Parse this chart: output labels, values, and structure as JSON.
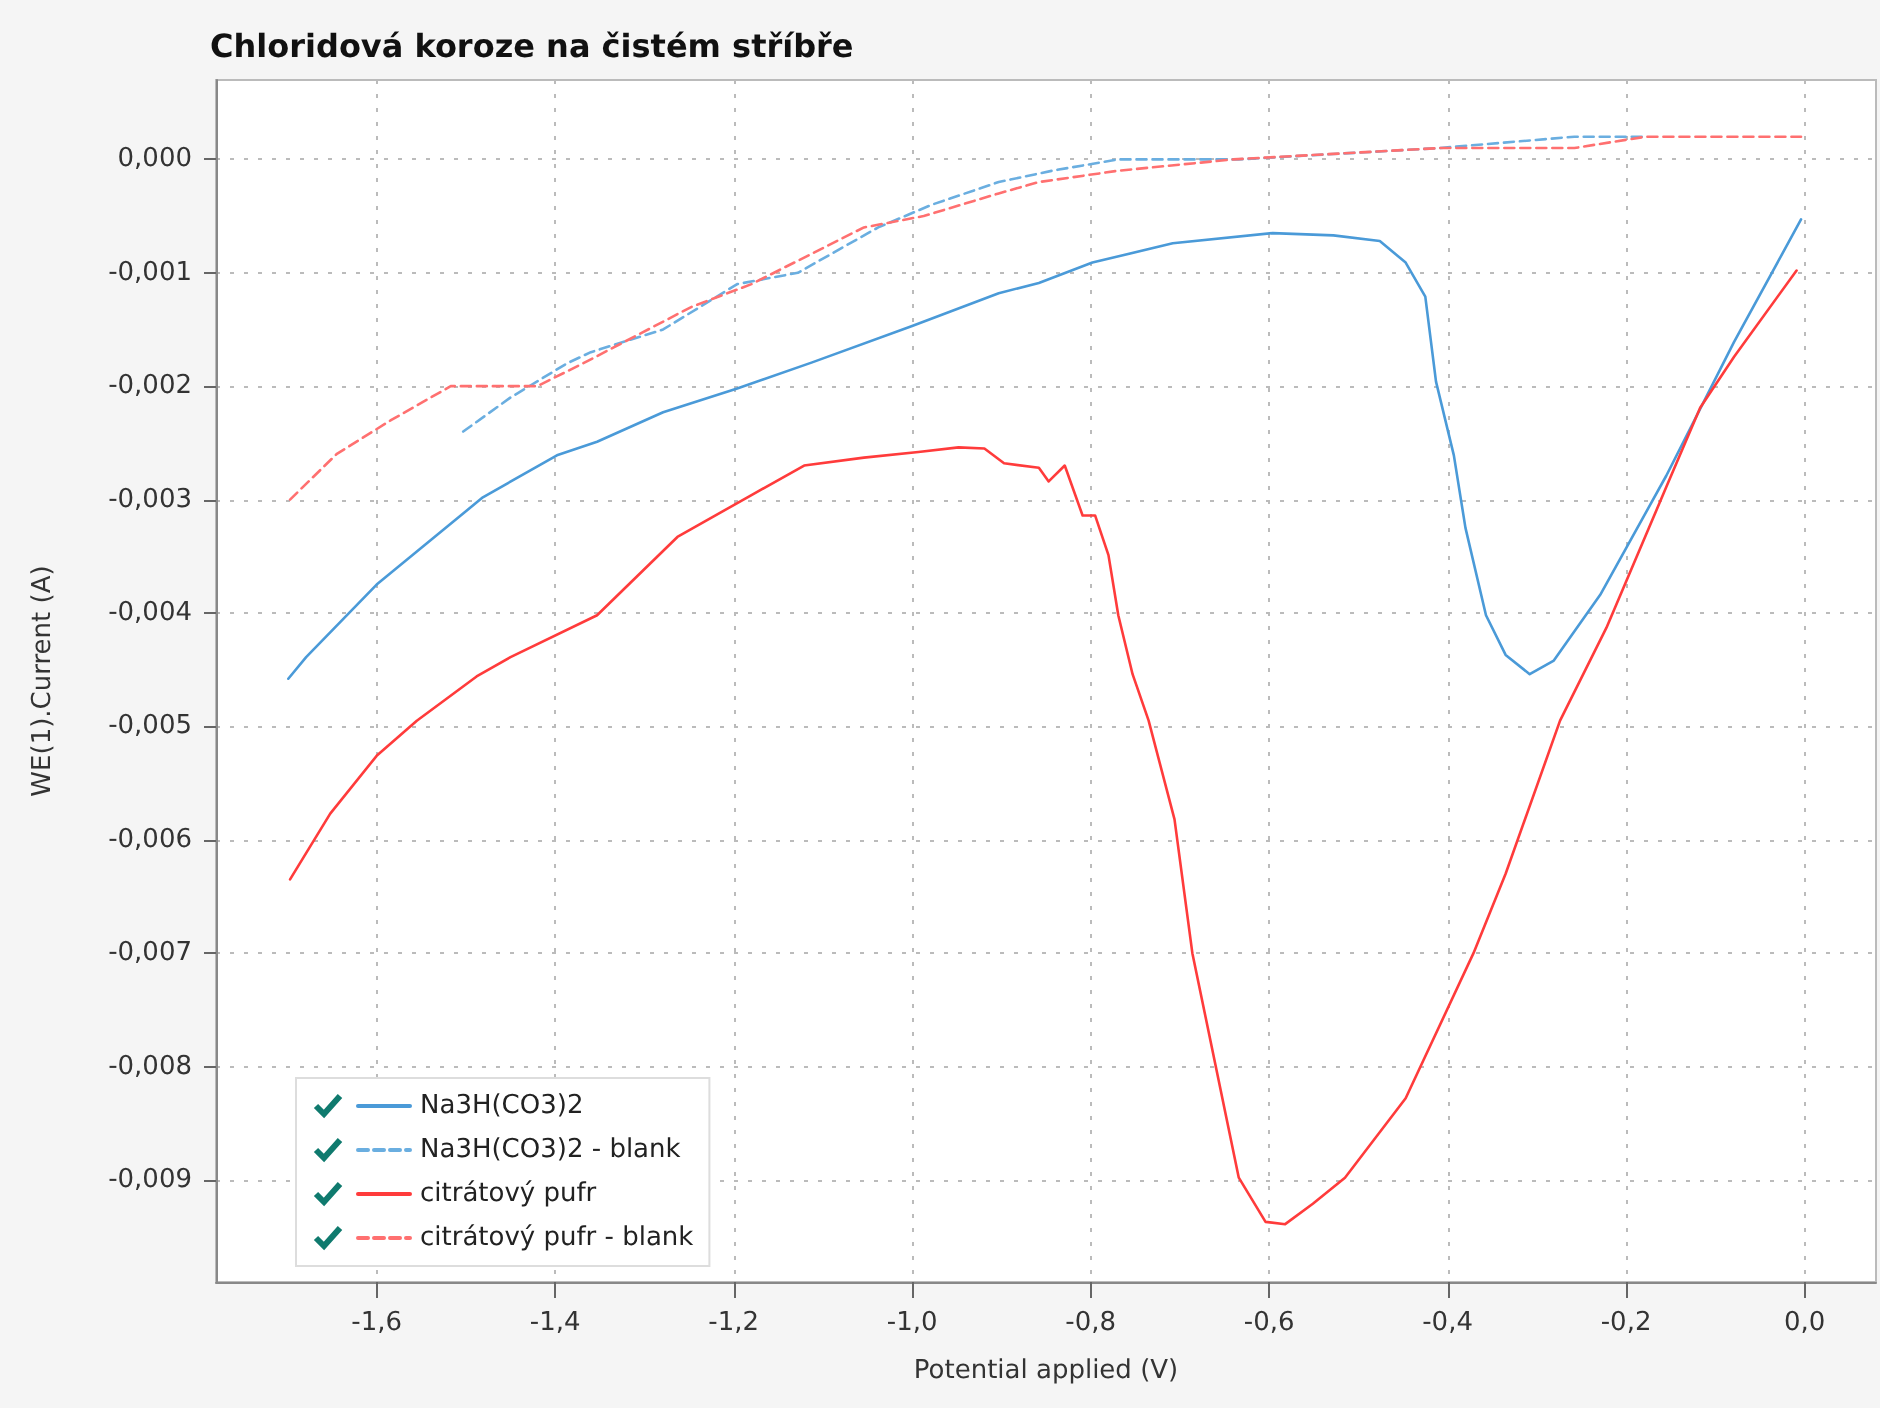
{
  "chart_data": {
    "type": "line",
    "title": "Chloridová koroze na čistém stříbře",
    "xlabel": "Potential applied (V)",
    "ylabel": "WE(1).Current (A)",
    "xlim": [
      -1.78,
      0.08
    ],
    "ylim": [
      -0.0099,
      0.0007
    ],
    "xticks": [
      {
        "value": -1.6,
        "label": "-1,6"
      },
      {
        "value": -1.4,
        "label": "-1,4"
      },
      {
        "value": -1.2,
        "label": "-1,2"
      },
      {
        "value": -1.0,
        "label": "-1,0"
      },
      {
        "value": -0.8,
        "label": "-0,8"
      },
      {
        "value": -0.6,
        "label": "-0,6"
      },
      {
        "value": -0.4,
        "label": "-0,4"
      },
      {
        "value": -0.2,
        "label": "-0,2"
      },
      {
        "value": 0.0,
        "label": "0,0"
      }
    ],
    "yticks": [
      {
        "value": 0.0,
        "label": "0,000"
      },
      {
        "value": -0.001,
        "label": "-0,001"
      },
      {
        "value": -0.002,
        "label": "-0,002"
      },
      {
        "value": -0.003,
        "label": "-0,003"
      },
      {
        "value": -0.004,
        "label": "-0,004"
      },
      {
        "value": -0.005,
        "label": "-0,005"
      },
      {
        "value": -0.006,
        "label": "-0,006"
      },
      {
        "value": -0.007,
        "label": "-0,007"
      },
      {
        "value": -0.008,
        "label": "-0,008"
      },
      {
        "value": -0.009,
        "label": "-0,009"
      }
    ],
    "grid": true,
    "legend": "bottom left",
    "marker": "none",
    "series": [
      {
        "name": "Na3H(CO3)2",
        "color": "#4a9ad8",
        "line_style": "solid",
        "x": [
          -1.699,
          -1.679,
          -1.6,
          -1.481,
          -1.398,
          -1.353,
          -1.279,
          -1.196,
          -1.112,
          -1.0,
          -0.903,
          -0.858,
          -0.798,
          -0.708,
          -0.596,
          -0.528,
          -0.476,
          -0.447,
          -0.425,
          -0.413,
          -0.393,
          -0.38,
          -0.357,
          -0.335,
          -0.308,
          -0.281,
          -0.229,
          -0.155,
          -0.079,
          -0.004
        ],
        "values": [
          -0.00458,
          -0.00439,
          -0.00375,
          -0.00298,
          -0.00261,
          -0.00249,
          -0.00223,
          -0.00202,
          -0.00179,
          -0.00147,
          -0.00118,
          -0.00109,
          -0.00091,
          -0.00074,
          -0.00065,
          -0.00067,
          -0.00072,
          -0.00091,
          -0.00121,
          -0.00196,
          -0.00261,
          -0.00325,
          -0.00402,
          -0.00437,
          -0.00454,
          -0.00442,
          -0.00384,
          -0.00279,
          -0.00161,
          -0.00053
        ]
      },
      {
        "name": "Na3H(CO3)2 - blank",
        "color": "#6aaee0",
        "line_style": "dashed",
        "x": [
          -1.503,
          -1.45,
          -1.387,
          -1.36,
          -1.279,
          -1.196,
          -1.128,
          -1.038,
          -0.978,
          -0.903,
          -0.843,
          -0.769,
          -0.634,
          -0.409,
          -0.258,
          -0.178
        ],
        "values": [
          -0.0024,
          -0.0021,
          -0.0018,
          -0.0017,
          -0.0015,
          -0.0011,
          -0.001,
          -0.0006,
          -0.0004,
          -0.0002,
          -0.0001,
          0.0,
          0.0,
          0.0001,
          0.0002,
          0.0002
        ]
      },
      {
        "name": "citrátový pufr",
        "color": "#ff3b3b",
        "line_style": "solid",
        "x": [
          -1.697,
          -1.652,
          -1.6,
          -1.555,
          -1.488,
          -1.45,
          -1.353,
          -1.263,
          -1.18,
          -1.121,
          -1.054,
          -0.993,
          -0.948,
          -0.919,
          -0.897,
          -0.858,
          -0.847,
          -0.829,
          -0.809,
          -0.795,
          -0.78,
          -0.769,
          -0.753,
          -0.735,
          -0.706,
          -0.686,
          -0.634,
          -0.604,
          -0.582,
          -0.551,
          -0.515,
          -0.447,
          -0.371,
          -0.335,
          -0.274,
          -0.222,
          -0.155,
          -0.117,
          -0.079,
          -0.009
        ],
        "values": [
          -0.00635,
          -0.00577,
          -0.00526,
          -0.00495,
          -0.00456,
          -0.00439,
          -0.00402,
          -0.00333,
          -0.00296,
          -0.0027,
          -0.00263,
          -0.00258,
          -0.00254,
          -0.00255,
          -0.00268,
          -0.00272,
          -0.00284,
          -0.0027,
          -0.00314,
          -0.00314,
          -0.00349,
          -0.00402,
          -0.00454,
          -0.00495,
          -0.00582,
          -0.007,
          -0.00898,
          -0.00937,
          -0.00939,
          -0.00921,
          -0.00898,
          -0.00828,
          -0.007,
          -0.0063,
          -0.00495,
          -0.00413,
          -0.00289,
          -0.00219,
          -0.00174,
          -0.00098
        ]
      },
      {
        "name": "citrátový pufr - blank",
        "color": "#ff7070",
        "line_style": "dashed",
        "x": [
          -1.697,
          -1.645,
          -1.584,
          -1.517,
          -1.45,
          -1.42,
          -1.369,
          -1.247,
          -1.18,
          -1.054,
          -0.987,
          -0.903,
          -0.858,
          -0.769,
          -0.64,
          -0.409,
          -0.258,
          -0.178,
          -0.004
        ],
        "values": [
          -0.003,
          -0.0026,
          -0.0023,
          -0.002,
          -0.002,
          -0.002,
          -0.0018,
          -0.0013,
          -0.0011,
          -0.0006,
          -0.0005,
          -0.0003,
          -0.0002,
          -0.0001,
          0.0,
          0.0001,
          0.0001,
          0.0002,
          0.0002
        ]
      }
    ]
  }
}
